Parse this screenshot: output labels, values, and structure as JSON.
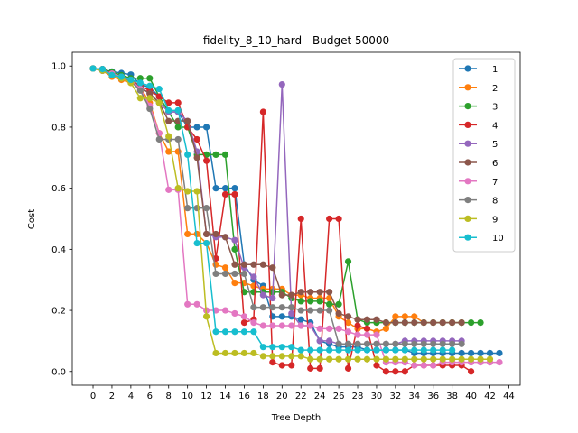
{
  "chart_data": {
    "type": "line",
    "title": "fidelity_8_10_hard - Budget  50000",
    "xlabel": "Tree Depth",
    "ylabel": "Cost",
    "xlim": [
      -2.2,
      45.2
    ],
    "ylim": [
      -0.045,
      1.045
    ],
    "x_ticks": [
      0,
      2,
      4,
      6,
      8,
      10,
      12,
      14,
      16,
      18,
      20,
      22,
      24,
      26,
      28,
      30,
      32,
      34,
      36,
      38,
      40,
      42,
      44
    ],
    "y_ticks": [
      0.0,
      0.2,
      0.4,
      0.6,
      0.8,
      1.0
    ],
    "x_tick_labels": [
      "0",
      "2",
      "4",
      "6",
      "8",
      "10",
      "12",
      "14",
      "16",
      "18",
      "20",
      "22",
      "24",
      "26",
      "28",
      "30",
      "32",
      "34",
      "36",
      "38",
      "40",
      "42",
      "44"
    ],
    "y_tick_labels": [
      "0.0",
      "0.2",
      "0.4",
      "0.6",
      "0.8",
      "1.0"
    ],
    "legend_position": "upper right",
    "series": [
      {
        "name": "1",
        "color": "#1f77b4",
        "values": [
          0.992,
          0.987,
          0.982,
          0.977,
          0.972,
          0.94,
          0.93,
          0.9,
          0.85,
          0.85,
          0.8,
          0.8,
          0.8,
          0.6,
          0.6,
          0.6,
          0.35,
          0.3,
          0.28,
          0.18,
          0.18,
          0.18,
          0.17,
          0.16,
          0.1,
          0.09,
          0.08,
          0.08,
          0.08,
          0.07,
          0.07,
          0.07,
          0.07,
          0.07,
          0.06,
          0.06,
          0.06,
          0.06,
          0.06,
          0.06,
          0.06,
          0.06,
          0.06,
          0.06
        ]
      },
      {
        "name": "2",
        "color": "#ff7f0e",
        "values": [
          0.992,
          0.985,
          0.965,
          0.955,
          0.945,
          0.93,
          0.88,
          0.78,
          0.72,
          0.72,
          0.45,
          0.45,
          0.42,
          0.35,
          0.34,
          0.29,
          0.29,
          0.28,
          0.27,
          0.27,
          0.27,
          0.25,
          0.25,
          0.24,
          0.24,
          0.24,
          0.18,
          0.16,
          0.14,
          0.14,
          0.13,
          0.14,
          0.18,
          0.18,
          0.18,
          0.16,
          0.16,
          0.16,
          0.16,
          0.16
        ]
      },
      {
        "name": "3",
        "color": "#2ca02c",
        "values": [
          0.992,
          0.99,
          0.98,
          0.97,
          0.96,
          0.96,
          0.96,
          0.9,
          0.85,
          0.8,
          0.8,
          0.71,
          0.71,
          0.71,
          0.71,
          0.4,
          0.26,
          0.26,
          0.26,
          0.26,
          0.26,
          0.24,
          0.23,
          0.23,
          0.23,
          0.22,
          0.22,
          0.36,
          0.17,
          0.16,
          0.16,
          0.16,
          0.16,
          0.16,
          0.16,
          0.16,
          0.16,
          0.16,
          0.16,
          0.16,
          0.16,
          0.16
        ]
      },
      {
        "name": "4",
        "color": "#d62728",
        "values": [
          0.992,
          0.99,
          0.975,
          0.965,
          0.955,
          0.935,
          0.92,
          0.9,
          0.88,
          0.88,
          0.8,
          0.76,
          0.69,
          0.37,
          0.58,
          0.58,
          0.16,
          0.17,
          0.85,
          0.03,
          0.02,
          0.02,
          0.5,
          0.01,
          0.01,
          0.5,
          0.5,
          0.01,
          0.15,
          0.14,
          0.02,
          0.0,
          0.0,
          0.0,
          0.02,
          0.02,
          0.02,
          0.02,
          0.02,
          0.02,
          0.0
        ]
      },
      {
        "name": "5",
        "color": "#9467bd",
        "values": [
          0.992,
          0.987,
          0.975,
          0.965,
          0.955,
          0.93,
          0.91,
          0.88,
          0.85,
          0.85,
          0.82,
          0.72,
          0.45,
          0.44,
          0.44,
          0.43,
          0.34,
          0.31,
          0.25,
          0.24,
          0.94,
          0.19,
          0.15,
          0.15,
          0.1,
          0.1,
          0.09,
          0.09,
          0.09,
          0.09,
          0.09,
          0.09,
          0.09,
          0.1,
          0.1,
          0.1,
          0.1,
          0.1,
          0.1,
          0.1
        ]
      },
      {
        "name": "6",
        "color": "#8c564b",
        "values": [
          0.992,
          0.985,
          0.975,
          0.965,
          0.955,
          0.93,
          0.91,
          0.88,
          0.82,
          0.82,
          0.82,
          0.7,
          0.45,
          0.45,
          0.44,
          0.35,
          0.35,
          0.35,
          0.35,
          0.34,
          0.25,
          0.25,
          0.26,
          0.26,
          0.26,
          0.26,
          0.19,
          0.18,
          0.17,
          0.17,
          0.17,
          0.16,
          0.16,
          0.16,
          0.16,
          0.16,
          0.16,
          0.16,
          0.16,
          0.16
        ]
      },
      {
        "name": "7",
        "color": "#e377c2",
        "values": [
          0.992,
          0.985,
          0.975,
          0.965,
          0.955,
          0.925,
          0.87,
          0.78,
          0.595,
          0.595,
          0.22,
          0.22,
          0.2,
          0.2,
          0.2,
          0.19,
          0.18,
          0.16,
          0.15,
          0.15,
          0.15,
          0.15,
          0.15,
          0.15,
          0.14,
          0.14,
          0.14,
          0.13,
          0.12,
          0.12,
          0.12,
          0.03,
          0.03,
          0.03,
          0.02,
          0.02,
          0.02,
          0.03,
          0.03,
          0.03,
          0.03,
          0.03,
          0.03,
          0.03
        ]
      },
      {
        "name": "8",
        "color": "#7f7f7f",
        "values": [
          0.992,
          0.985,
          0.97,
          0.96,
          0.95,
          0.92,
          0.86,
          0.76,
          0.76,
          0.76,
          0.535,
          0.535,
          0.535,
          0.32,
          0.32,
          0.32,
          0.32,
          0.21,
          0.21,
          0.21,
          0.21,
          0.21,
          0.2,
          0.2,
          0.2,
          0.2,
          0.09,
          0.09,
          0.09,
          0.09,
          0.09,
          0.09,
          0.09,
          0.09,
          0.09,
          0.09,
          0.09,
          0.09,
          0.09,
          0.09
        ]
      },
      {
        "name": "9",
        "color": "#bcbd22",
        "values": [
          0.992,
          0.985,
          0.97,
          0.96,
          0.945,
          0.895,
          0.895,
          0.88,
          0.77,
          0.6,
          0.59,
          0.59,
          0.18,
          0.06,
          0.06,
          0.06,
          0.06,
          0.06,
          0.05,
          0.05,
          0.05,
          0.05,
          0.05,
          0.04,
          0.04,
          0.04,
          0.04,
          0.04,
          0.04,
          0.04,
          0.04,
          0.04,
          0.04,
          0.04,
          0.04,
          0.04,
          0.04,
          0.04,
          0.04,
          0.04,
          0.04,
          0.04,
          0.04
        ]
      },
      {
        "name": "10",
        "color": "#17becf",
        "values": [
          0.992,
          0.99,
          0.97,
          0.965,
          0.955,
          0.945,
          0.935,
          0.925,
          0.855,
          0.855,
          0.71,
          0.42,
          0.42,
          0.13,
          0.13,
          0.13,
          0.13,
          0.13,
          0.08,
          0.08,
          0.08,
          0.08,
          0.07,
          0.07,
          0.07,
          0.07,
          0.07,
          0.07,
          0.07,
          0.07,
          0.07,
          0.07,
          0.07,
          0.07,
          0.07,
          0.07,
          0.07,
          0.07,
          0.07
        ]
      }
    ]
  }
}
